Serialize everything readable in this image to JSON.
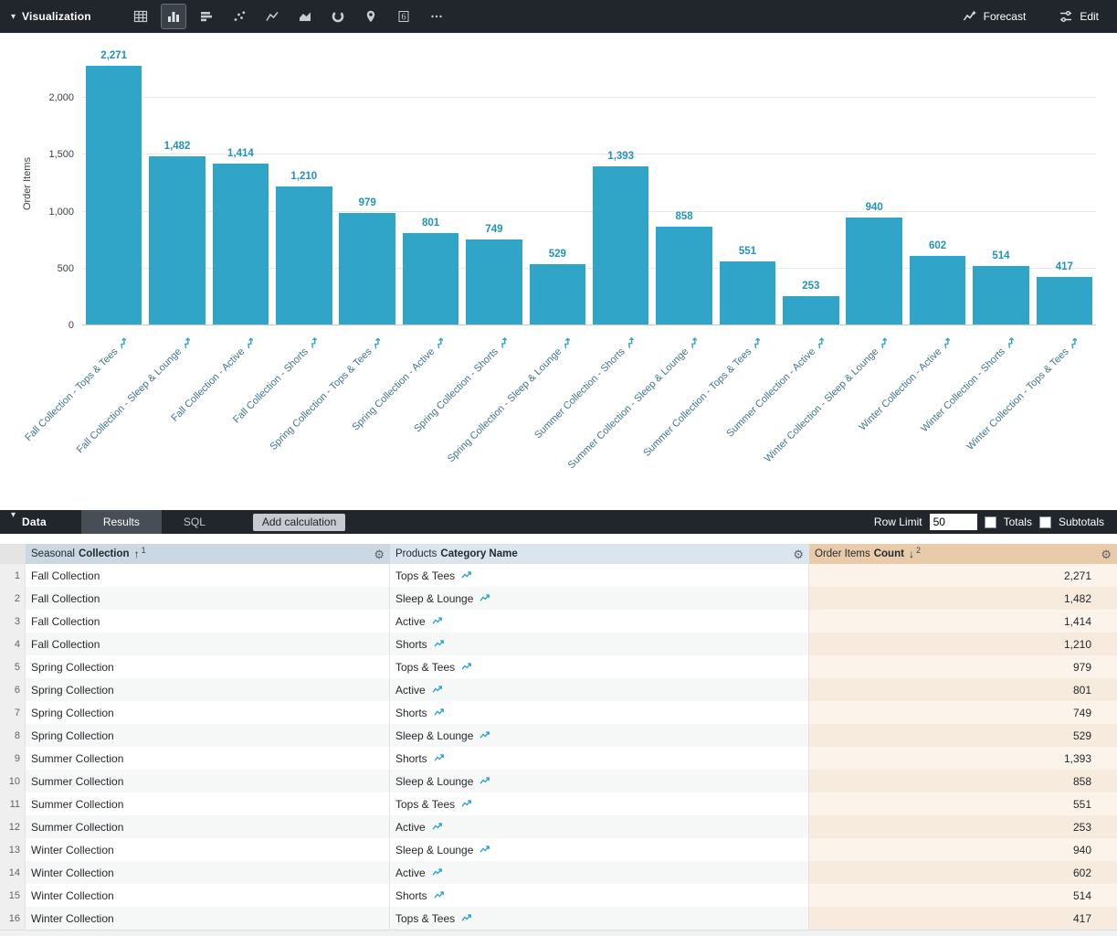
{
  "toolbar": {
    "section_label": "Visualization",
    "forecast_label": "Forecast",
    "edit_label": "Edit",
    "viz_types": [
      "table",
      "column",
      "bar",
      "scatter",
      "line",
      "area",
      "pie",
      "map",
      "single-value",
      "more"
    ],
    "selected_viz_type": "column"
  },
  "chart_data": {
    "type": "bar",
    "title": "",
    "xlabel": "",
    "ylabel": "Order Items",
    "ylim": [
      0,
      2490
    ],
    "grid": true,
    "legend": "none",
    "bar_color": "#31a5c8",
    "label_color": "#2392b8",
    "yticks": [
      0,
      500,
      1000,
      1500,
      2000
    ],
    "ytick_labels": [
      "0",
      "500",
      "1,000",
      "1,500",
      "2,000"
    ],
    "categories": [
      "Fall Collection - Tops & Tees",
      "Fall Collection - Sleep & Lounge",
      "Fall Collection - Active",
      "Fall Collection - Shorts",
      "Spring Collection - Tops & Tees",
      "Spring Collection - Active",
      "Spring Collection - Shorts",
      "Spring Collection - Sleep & Lounge",
      "Summer Collection - Shorts",
      "Summer Collection - Sleep & Lounge",
      "Summer Collection - Tops & Tees",
      "Summer Collection - Active",
      "Winter Collection - Sleep & Lounge",
      "Winter Collection - Active",
      "Winter Collection - Shorts",
      "Winter Collection - Tops & Tees"
    ],
    "values": [
      2271,
      1482,
      1414,
      1210,
      979,
      801,
      749,
      529,
      1393,
      858,
      551,
      253,
      940,
      602,
      514,
      417
    ],
    "value_labels": [
      "2,271",
      "1,482",
      "1,414",
      "1,210",
      "979",
      "801",
      "749",
      "529",
      "1,393",
      "858",
      "551",
      "253",
      "940",
      "602",
      "514",
      "417"
    ]
  },
  "data_bar": {
    "section_label": "Data",
    "tabs": [
      {
        "label": "Results",
        "active": true
      },
      {
        "label": "SQL",
        "active": false
      }
    ],
    "add_calculation_label": "Add calculation",
    "row_limit_label": "Row Limit",
    "row_limit_value": "50",
    "totals_label": "Totals",
    "totals_checked": false,
    "subtotals_label": "Subtotals",
    "subtotals_checked": false
  },
  "table": {
    "columns": [
      {
        "view": "Seasonal",
        "field": "Collection",
        "sort_glyph": "↑",
        "sort_rank": "1"
      },
      {
        "view": "Products",
        "field": "Category Name",
        "sort_glyph": "",
        "sort_rank": ""
      },
      {
        "view": "Order Items",
        "field": "Count",
        "sort_glyph": "↓",
        "sort_rank": "2"
      }
    ],
    "rows": [
      {
        "n": "1",
        "collection": "Fall Collection",
        "category": "Tops & Tees",
        "count": "2,271"
      },
      {
        "n": "2",
        "collection": "Fall Collection",
        "category": "Sleep & Lounge",
        "count": "1,482"
      },
      {
        "n": "3",
        "collection": "Fall Collection",
        "category": "Active",
        "count": "1,414"
      },
      {
        "n": "4",
        "collection": "Fall Collection",
        "category": "Shorts",
        "count": "1,210"
      },
      {
        "n": "5",
        "collection": "Spring Collection",
        "category": "Tops & Tees",
        "count": "979"
      },
      {
        "n": "6",
        "collection": "Spring Collection",
        "category": "Active",
        "count": "801"
      },
      {
        "n": "7",
        "collection": "Spring Collection",
        "category": "Shorts",
        "count": "749"
      },
      {
        "n": "8",
        "collection": "Spring Collection",
        "category": "Sleep & Lounge",
        "count": "529"
      },
      {
        "n": "9",
        "collection": "Summer Collection",
        "category": "Shorts",
        "count": "1,393"
      },
      {
        "n": "10",
        "collection": "Summer Collection",
        "category": "Sleep & Lounge",
        "count": "858"
      },
      {
        "n": "11",
        "collection": "Summer Collection",
        "category": "Tops & Tees",
        "count": "551"
      },
      {
        "n": "12",
        "collection": "Summer Collection",
        "category": "Active",
        "count": "253"
      },
      {
        "n": "13",
        "collection": "Winter Collection",
        "category": "Sleep & Lounge",
        "count": "940"
      },
      {
        "n": "14",
        "collection": "Winter Collection",
        "category": "Active",
        "count": "602"
      },
      {
        "n": "15",
        "collection": "Winter Collection",
        "category": "Shorts",
        "count": "514"
      },
      {
        "n": "16",
        "collection": "Winter Collection",
        "category": "Tops & Tees",
        "count": "417"
      }
    ]
  }
}
